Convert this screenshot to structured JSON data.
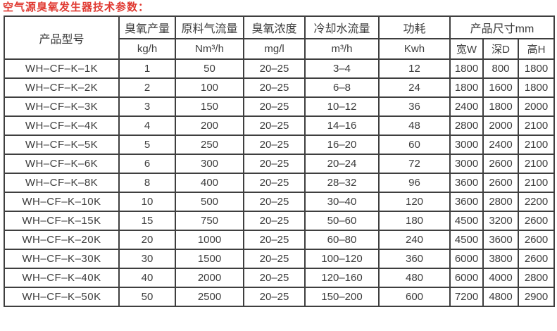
{
  "title": "空气源臭氧发生器技术参数：",
  "colors": {
    "title_red": "#e03a32",
    "border": "#3f3f3f",
    "text": "#3c3c3c",
    "background": "#ffffff"
  },
  "table": {
    "header": {
      "model": "产品型号",
      "columns": [
        {
          "label": "臭氧产量",
          "unit": "kg/h"
        },
        {
          "label": "原料气流量",
          "unit": "Nm³/h"
        },
        {
          "label": "臭氧浓度",
          "unit": "mg/l"
        },
        {
          "label": "冷却水流量",
          "unit": "m³/h"
        },
        {
          "label": "功耗",
          "unit": "Kwh"
        }
      ],
      "dimensions": {
        "label": "产品尺寸mm",
        "sub": [
          "宽W",
          "深D",
          "高H"
        ]
      }
    },
    "rows": [
      [
        "WH–CF–K–1K",
        "1",
        "50",
        "20–25",
        "3–4",
        "12",
        "1800",
        "800",
        "1800"
      ],
      [
        "WH–CF–K–2K",
        "2",
        "100",
        "20–25",
        "6–8",
        "24",
        "1800",
        "1600",
        "1800"
      ],
      [
        "WH–CF–K–3K",
        "3",
        "150",
        "20–25",
        "10–12",
        "36",
        "2400",
        "1800",
        "2000"
      ],
      [
        "WH–CF–K–4K",
        "4",
        "200",
        "20–25",
        "14–16",
        "48",
        "2800",
        "2000",
        "2100"
      ],
      [
        "WH–CF–K–5K",
        "5",
        "250",
        "20–25",
        "16–20",
        "60",
        "3000",
        "2400",
        "2100"
      ],
      [
        "WH–CF–K–6K",
        "6",
        "300",
        "20–25",
        "20–24",
        "72",
        "3000",
        "2600",
        "2100"
      ],
      [
        "WH–CF–K–8K",
        "8",
        "400",
        "20–25",
        "28–32",
        "96",
        "3600",
        "2600",
        "2100"
      ],
      [
        "WH–CF–K–10K",
        "10",
        "500",
        "20–25",
        "30–40",
        "120",
        "3600",
        "2800",
        "2200"
      ],
      [
        "WH–CF–K–15K",
        "15",
        "750",
        "20–25",
        "50–60",
        "180",
        "4500",
        "3200",
        "2600"
      ],
      [
        "WH–CF–K–20K",
        "20",
        "1000",
        "20–25",
        "60–80",
        "240",
        "4500",
        "3600",
        "2600"
      ],
      [
        "WH–CF–K–30K",
        "30",
        "1500",
        "20–25",
        "100–120",
        "360",
        "6000",
        "3800",
        "2600"
      ],
      [
        "WH–CF–K–40K",
        "40",
        "2000",
        "20–25",
        "120–160",
        "480",
        "6000",
        "4000",
        "2800"
      ],
      [
        "WH–CF–K–50K",
        "50",
        "2500",
        "20–25",
        "150–200",
        "600",
        "7200",
        "4800",
        "2900"
      ]
    ]
  }
}
